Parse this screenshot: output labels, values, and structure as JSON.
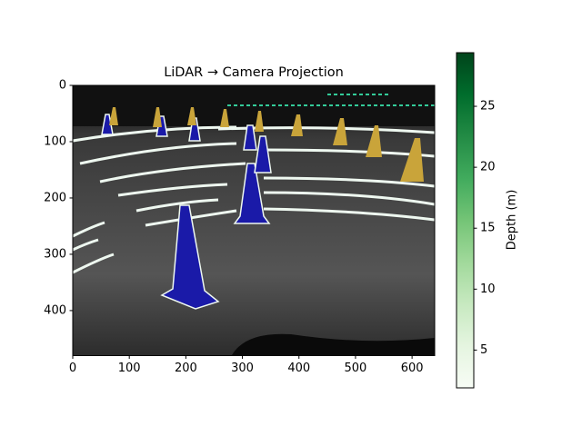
{
  "chart_data": {
    "type": "image",
    "title": "LiDAR → Camera Projection",
    "xlim": [
      0,
      640
    ],
    "ylim": [
      480,
      0
    ],
    "xticks": [
      0,
      100,
      200,
      300,
      400,
      500,
      600
    ],
    "yticks": [
      0,
      100,
      200,
      300,
      400
    ],
    "colorbar": {
      "label": "Depth (m)",
      "colormap": "Greens",
      "lim": [
        1.9,
        29.4
      ],
      "ticks": [
        5,
        10,
        15,
        20,
        25
      ]
    }
  }
}
